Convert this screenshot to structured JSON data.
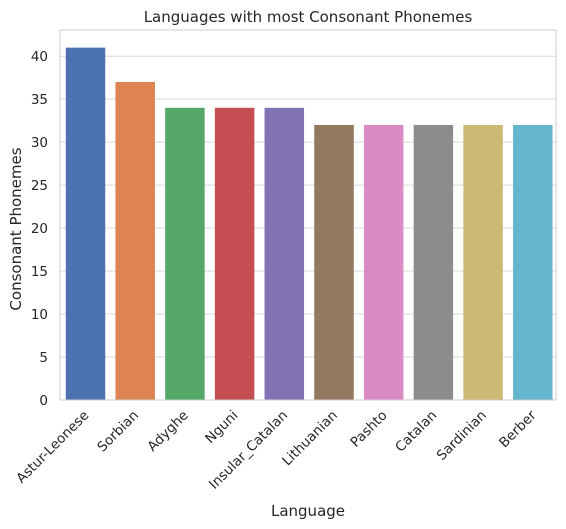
{
  "chart_data": {
    "type": "bar",
    "title": "Languages with most Consonant Phonemes",
    "xlabel": "Language",
    "ylabel": "Consonant Phonemes",
    "categories": [
      "Astur-Leonese",
      "Sorbian",
      "Adyghe",
      "Nguni",
      "Insular_Catalan",
      "Lithuanian",
      "Pashto",
      "Catalan",
      "Sardinian",
      "Berber"
    ],
    "values": [
      41,
      37,
      34,
      34,
      34,
      32,
      32,
      32,
      32,
      32
    ],
    "colors": [
      "#4c72b0",
      "#dd8452",
      "#55a868",
      "#c44e52",
      "#8172b3",
      "#937860",
      "#da8bc3",
      "#8c8c8c",
      "#ccb974",
      "#64b5cd"
    ],
    "yticks": [
      0,
      5,
      10,
      15,
      20,
      25,
      30,
      35,
      40
    ],
    "ylim": [
      0,
      43.05
    ],
    "grid": true,
    "style": "seaborn-whitegrid"
  }
}
